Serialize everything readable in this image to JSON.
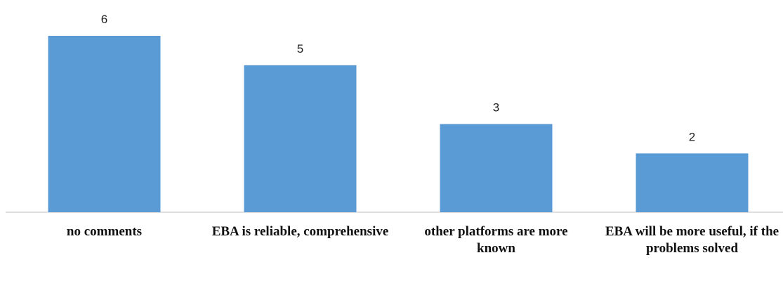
{
  "chart_data": {
    "type": "bar",
    "categories": [
      "no comments",
      "EBA is reliable, comprehensive",
      "other platforms are more known",
      "EBA will be more useful, if the problems solved"
    ],
    "values": [
      6,
      5,
      3,
      2
    ],
    "color": "#5b9bd5",
    "ylim": [
      0,
      6
    ]
  }
}
